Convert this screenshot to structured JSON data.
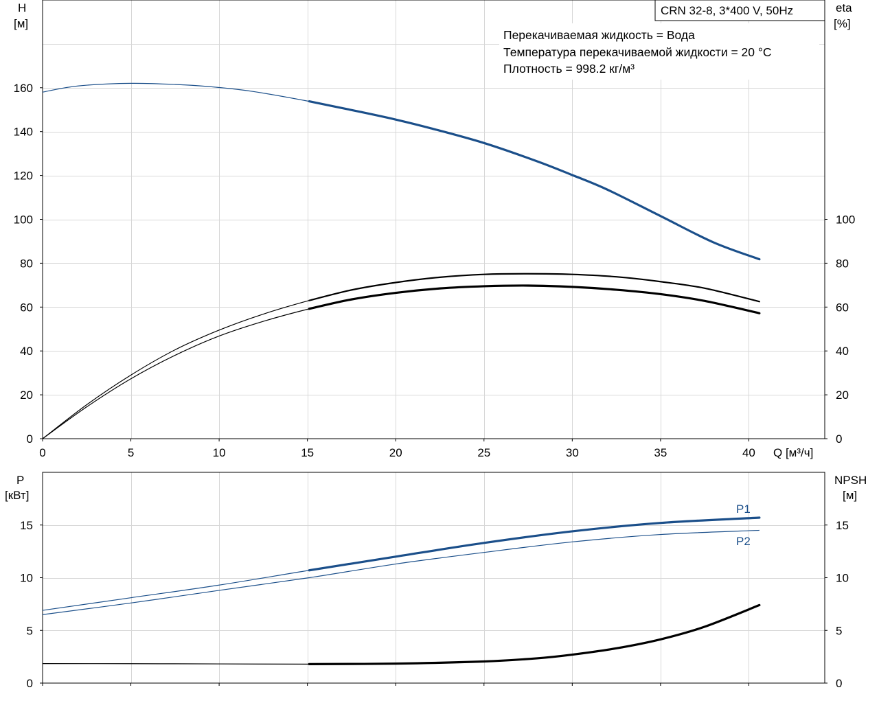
{
  "pump_model": "CRN 32-8, 3*400 V, 50Hz",
  "info_lines": [
    "Перекачиваемая жидкость = Вода",
    "Температура перекачиваемой жидкости = 20 °C",
    "Плотность = 998.2 кг/м³"
  ],
  "top": {
    "left_axis_name": "H",
    "left_axis_unit": "[м]",
    "right_axis_name": "eta",
    "right_axis_unit": "[%]",
    "x_axis_label": "Q [м³/ч]"
  },
  "bottom": {
    "left_axis_name": "P",
    "left_axis_unit": "[кВт]",
    "right_axis_name": "NPSH",
    "right_axis_unit": "[м]",
    "p1_label": "P1",
    "p2_label": "P2"
  },
  "colors": {
    "blue": "#1b4f8a",
    "black": "#000000",
    "grid": "#d7d7d7"
  },
  "chart_data": [
    {
      "type": "line",
      "xlim": [
        0,
        44.3
      ],
      "ylim_left": [
        0,
        200
      ],
      "ylim_right": [
        0,
        200
      ],
      "x_ticks": [
        0,
        5,
        10,
        15,
        20,
        25,
        30,
        35,
        40
      ],
      "y_ticks_left": [
        0,
        20,
        40,
        60,
        80,
        100,
        120,
        140,
        160
      ],
      "y_ticks_right": [
        0,
        20,
        40,
        60,
        80,
        100
      ],
      "operating_start": 15.1,
      "grid": true,
      "series": [
        {
          "axis": "left",
          "role": "H",
          "x": [
            0,
            2,
            5,
            8,
            10,
            12,
            15.1,
            18,
            20,
            22,
            25,
            28,
            30,
            32,
            35,
            38,
            40.6
          ],
          "values": [
            158,
            160.8,
            162,
            161.3,
            160.1,
            158.2,
            153.8,
            149,
            145.5,
            141.5,
            134.8,
            126.5,
            120.2,
            113.5,
            101.5,
            89.5,
            81.8
          ]
        },
        {
          "axis": "right",
          "role": "eta-1",
          "x": [
            0,
            2.5,
            5,
            7.5,
            10,
            12.5,
            15.1,
            17.5,
            20,
            22.5,
            25,
            27.5,
            30,
            32.5,
            35,
            37.5,
            40.6
          ],
          "values": [
            0,
            15.5,
            29,
            40.5,
            49.5,
            56.8,
            63,
            67.8,
            71.2,
            73.6,
            74.9,
            75.2,
            74.9,
            73.8,
            71.6,
            68.6,
            62.5
          ]
        },
        {
          "axis": "right",
          "role": "eta-2",
          "x": [
            0,
            2.5,
            5,
            7.5,
            10,
            12.5,
            15.1,
            17.5,
            20,
            22.5,
            25,
            27.5,
            30,
            32.5,
            35,
            37.5,
            40.6
          ],
          "values": [
            0,
            14.5,
            27.3,
            38,
            46.8,
            53.5,
            59.2,
            63.5,
            66.5,
            68.5,
            69.5,
            69.8,
            69.2,
            67.9,
            65.9,
            62.8,
            57.2
          ]
        }
      ]
    },
    {
      "type": "line",
      "xlim": [
        0,
        44.3
      ],
      "ylim_left": [
        0,
        20
      ],
      "ylim_right": [
        0,
        20
      ],
      "x_ticks": [
        0,
        5,
        10,
        15,
        20,
        25,
        30,
        35,
        40
      ],
      "y_ticks_left": [
        0,
        5,
        10,
        15
      ],
      "y_ticks_right": [
        0,
        5,
        10,
        15
      ],
      "operating_start": 15.1,
      "grid": true,
      "series": [
        {
          "name": "P1",
          "axis": "left",
          "x": [
            0,
            5,
            10,
            15.1,
            20,
            25,
            30,
            35,
            40.6
          ],
          "values": [
            6.9,
            8.1,
            9.3,
            10.7,
            12.0,
            13.3,
            14.4,
            15.2,
            15.7
          ]
        },
        {
          "name": "P2",
          "axis": "left",
          "x": [
            0,
            5,
            10,
            15.1,
            20,
            25,
            30,
            35,
            40.6
          ],
          "values": [
            6.5,
            7.6,
            8.8,
            10.0,
            11.3,
            12.4,
            13.4,
            14.1,
            14.5
          ]
        },
        {
          "axis": "right",
          "role": "NPSH",
          "x": [
            0,
            5,
            10,
            15.1,
            20,
            25,
            28,
            30,
            32.5,
            35,
            37.5,
            40.6
          ],
          "values": [
            1.85,
            1.84,
            1.82,
            1.8,
            1.85,
            2.05,
            2.35,
            2.7,
            3.3,
            4.15,
            5.35,
            7.4
          ]
        }
      ]
    }
  ]
}
